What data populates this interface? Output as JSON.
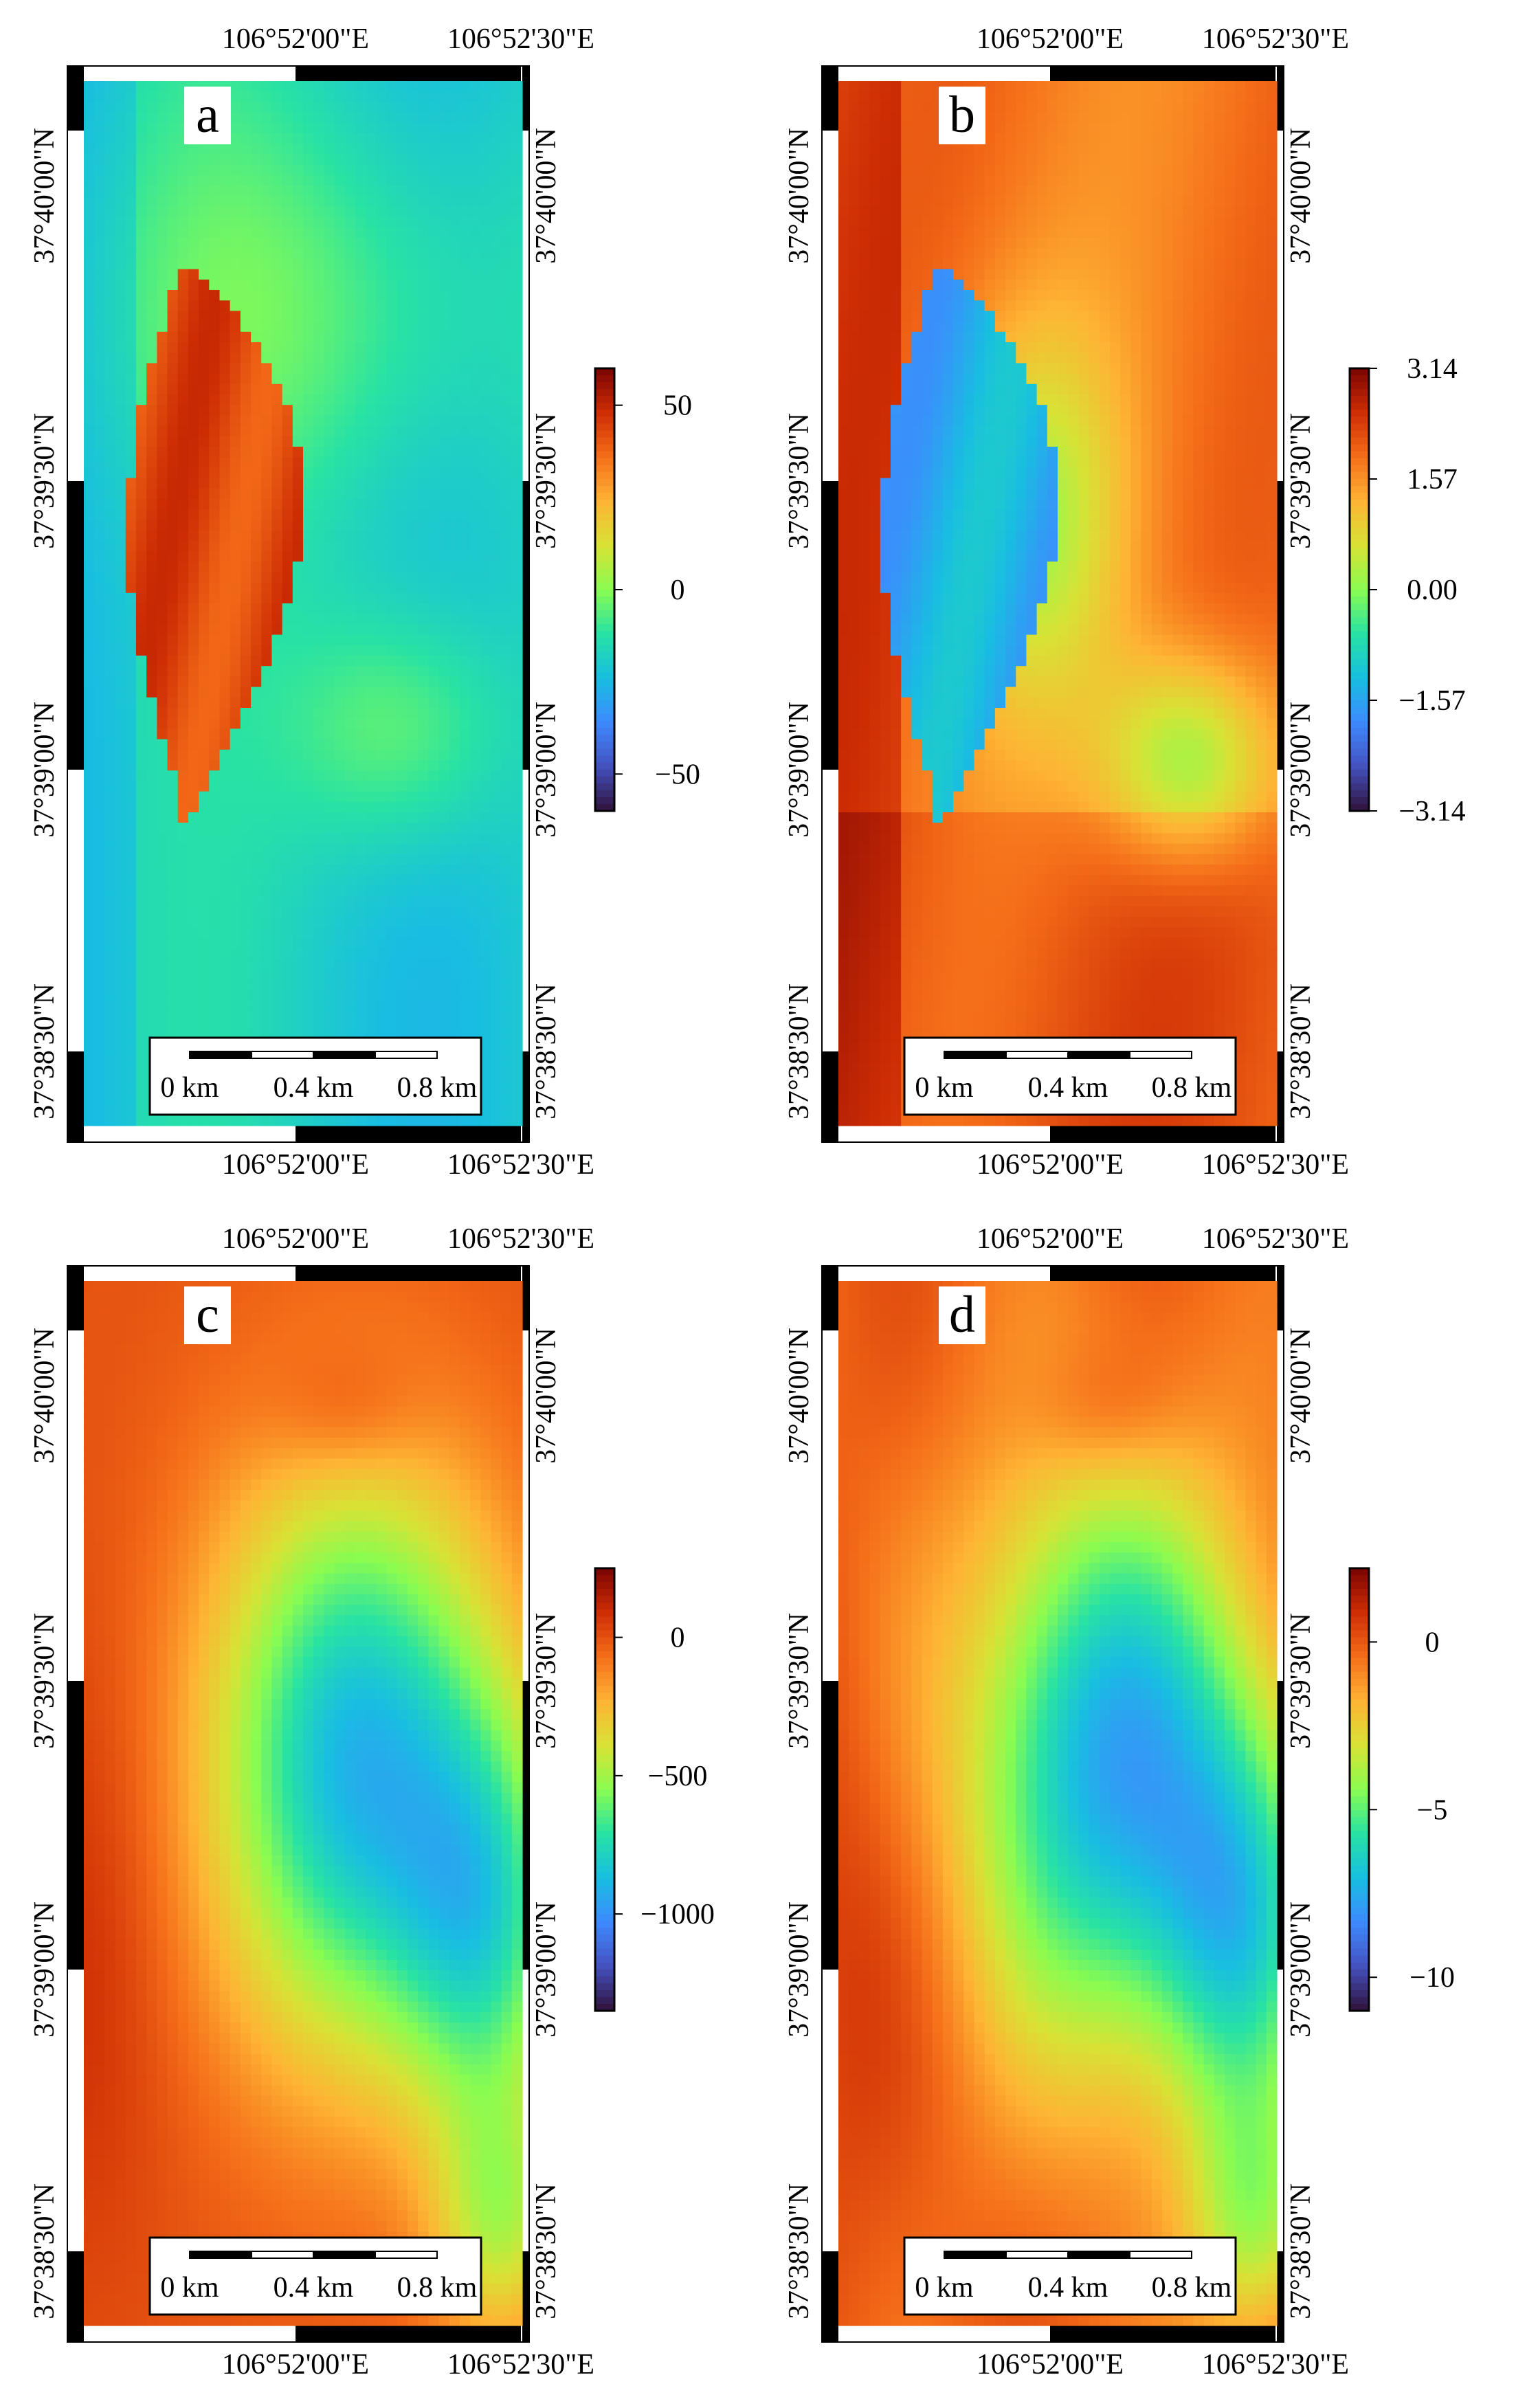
{
  "figure": {
    "coordinates": {
      "lon_top_labels": [
        "106°52'00\"E",
        "106°52'30\"E"
      ],
      "lon_bottom_labels": [
        "106°52'00\"E",
        "106°52'30\"E"
      ],
      "lat_labels": [
        "37°40'00\"N",
        "37°39'30\"N",
        "37°39'00\"N",
        "37°38'30\"N"
      ]
    },
    "scalebar": {
      "labels": [
        "0 km",
        "0.4 km",
        "0.8 km"
      ]
    },
    "panels": [
      {
        "id": "a",
        "label": "a",
        "colorbar": {
          "ticks": [
            "50",
            "0",
            "−50"
          ],
          "values": [
            50,
            0,
            -50
          ],
          "min": -60,
          "max": 60
        }
      },
      {
        "id": "b",
        "label": "b",
        "colorbar": {
          "ticks": [
            "3.14",
            "1.57",
            "0.00",
            "−1.57",
            "−3.14"
          ],
          "values": [
            3.14,
            1.57,
            0,
            -1.57,
            -3.14
          ],
          "min": -3.14,
          "max": 3.14
        }
      },
      {
        "id": "c",
        "label": "c",
        "colorbar": {
          "ticks": [
            "0",
            "−500",
            "−1000"
          ],
          "values": [
            0,
            -500,
            -1000
          ],
          "min": -1350,
          "max": 250
        }
      },
      {
        "id": "d",
        "label": "d",
        "colorbar": {
          "ticks": [
            "0",
            "−5",
            "−10"
          ],
          "values": [
            0,
            -5,
            -10
          ],
          "min": -11,
          "max": 2.2
        }
      }
    ]
  }
}
